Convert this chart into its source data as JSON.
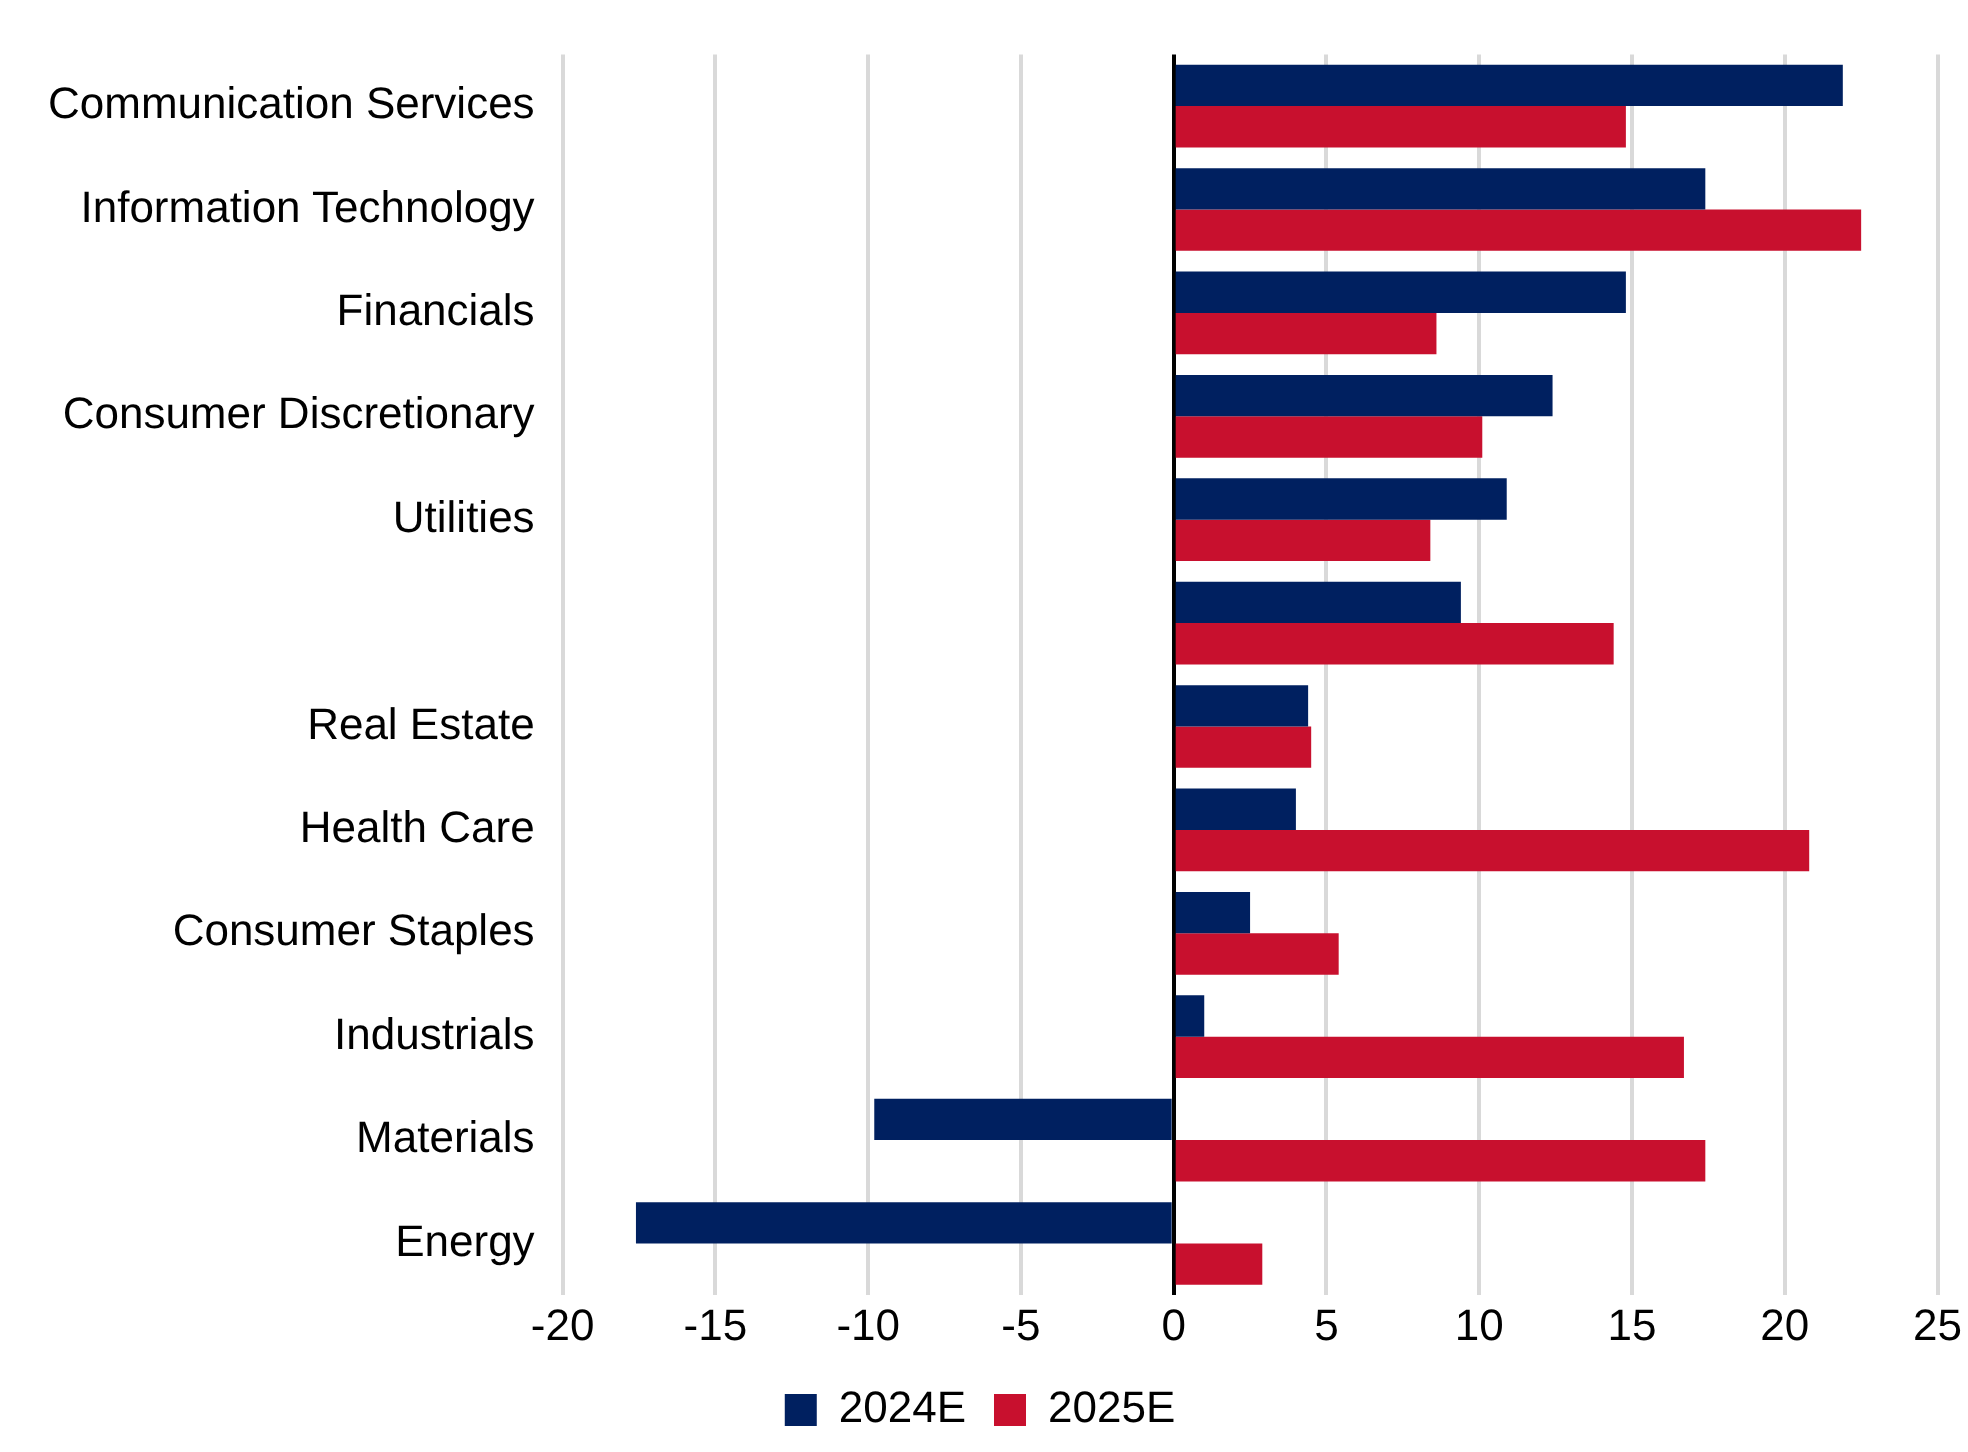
{
  "chart_data": {
    "type": "bar",
    "orientation": "horizontal",
    "categories": [
      "Communication Services",
      "Information Technology",
      "Financials",
      "Consumer Discretionary",
      "Utilities",
      null,
      "Real Estate",
      "Health Care",
      "Consumer Staples",
      "Industrials",
      "Materials",
      "Energy"
    ],
    "series": [
      {
        "name": "2024E",
        "color": "#002060",
        "values": [
          21.9,
          17.4,
          14.8,
          12.4,
          10.9,
          9.4,
          4.4,
          4.0,
          2.5,
          1.0,
          -9.8,
          -17.6
        ]
      },
      {
        "name": "2025E",
        "color": "#c8102e",
        "values": [
          14.8,
          22.5,
          8.6,
          10.1,
          8.4,
          14.4,
          4.5,
          20.8,
          5.4,
          16.7,
          17.4,
          2.9
        ]
      }
    ],
    "xlim": [
      -20,
      25
    ],
    "xticks": [
      -20,
      -15,
      -10,
      -5,
      0,
      5,
      10,
      15,
      20,
      25
    ],
    "grid": "x",
    "legend": "bottom"
  }
}
